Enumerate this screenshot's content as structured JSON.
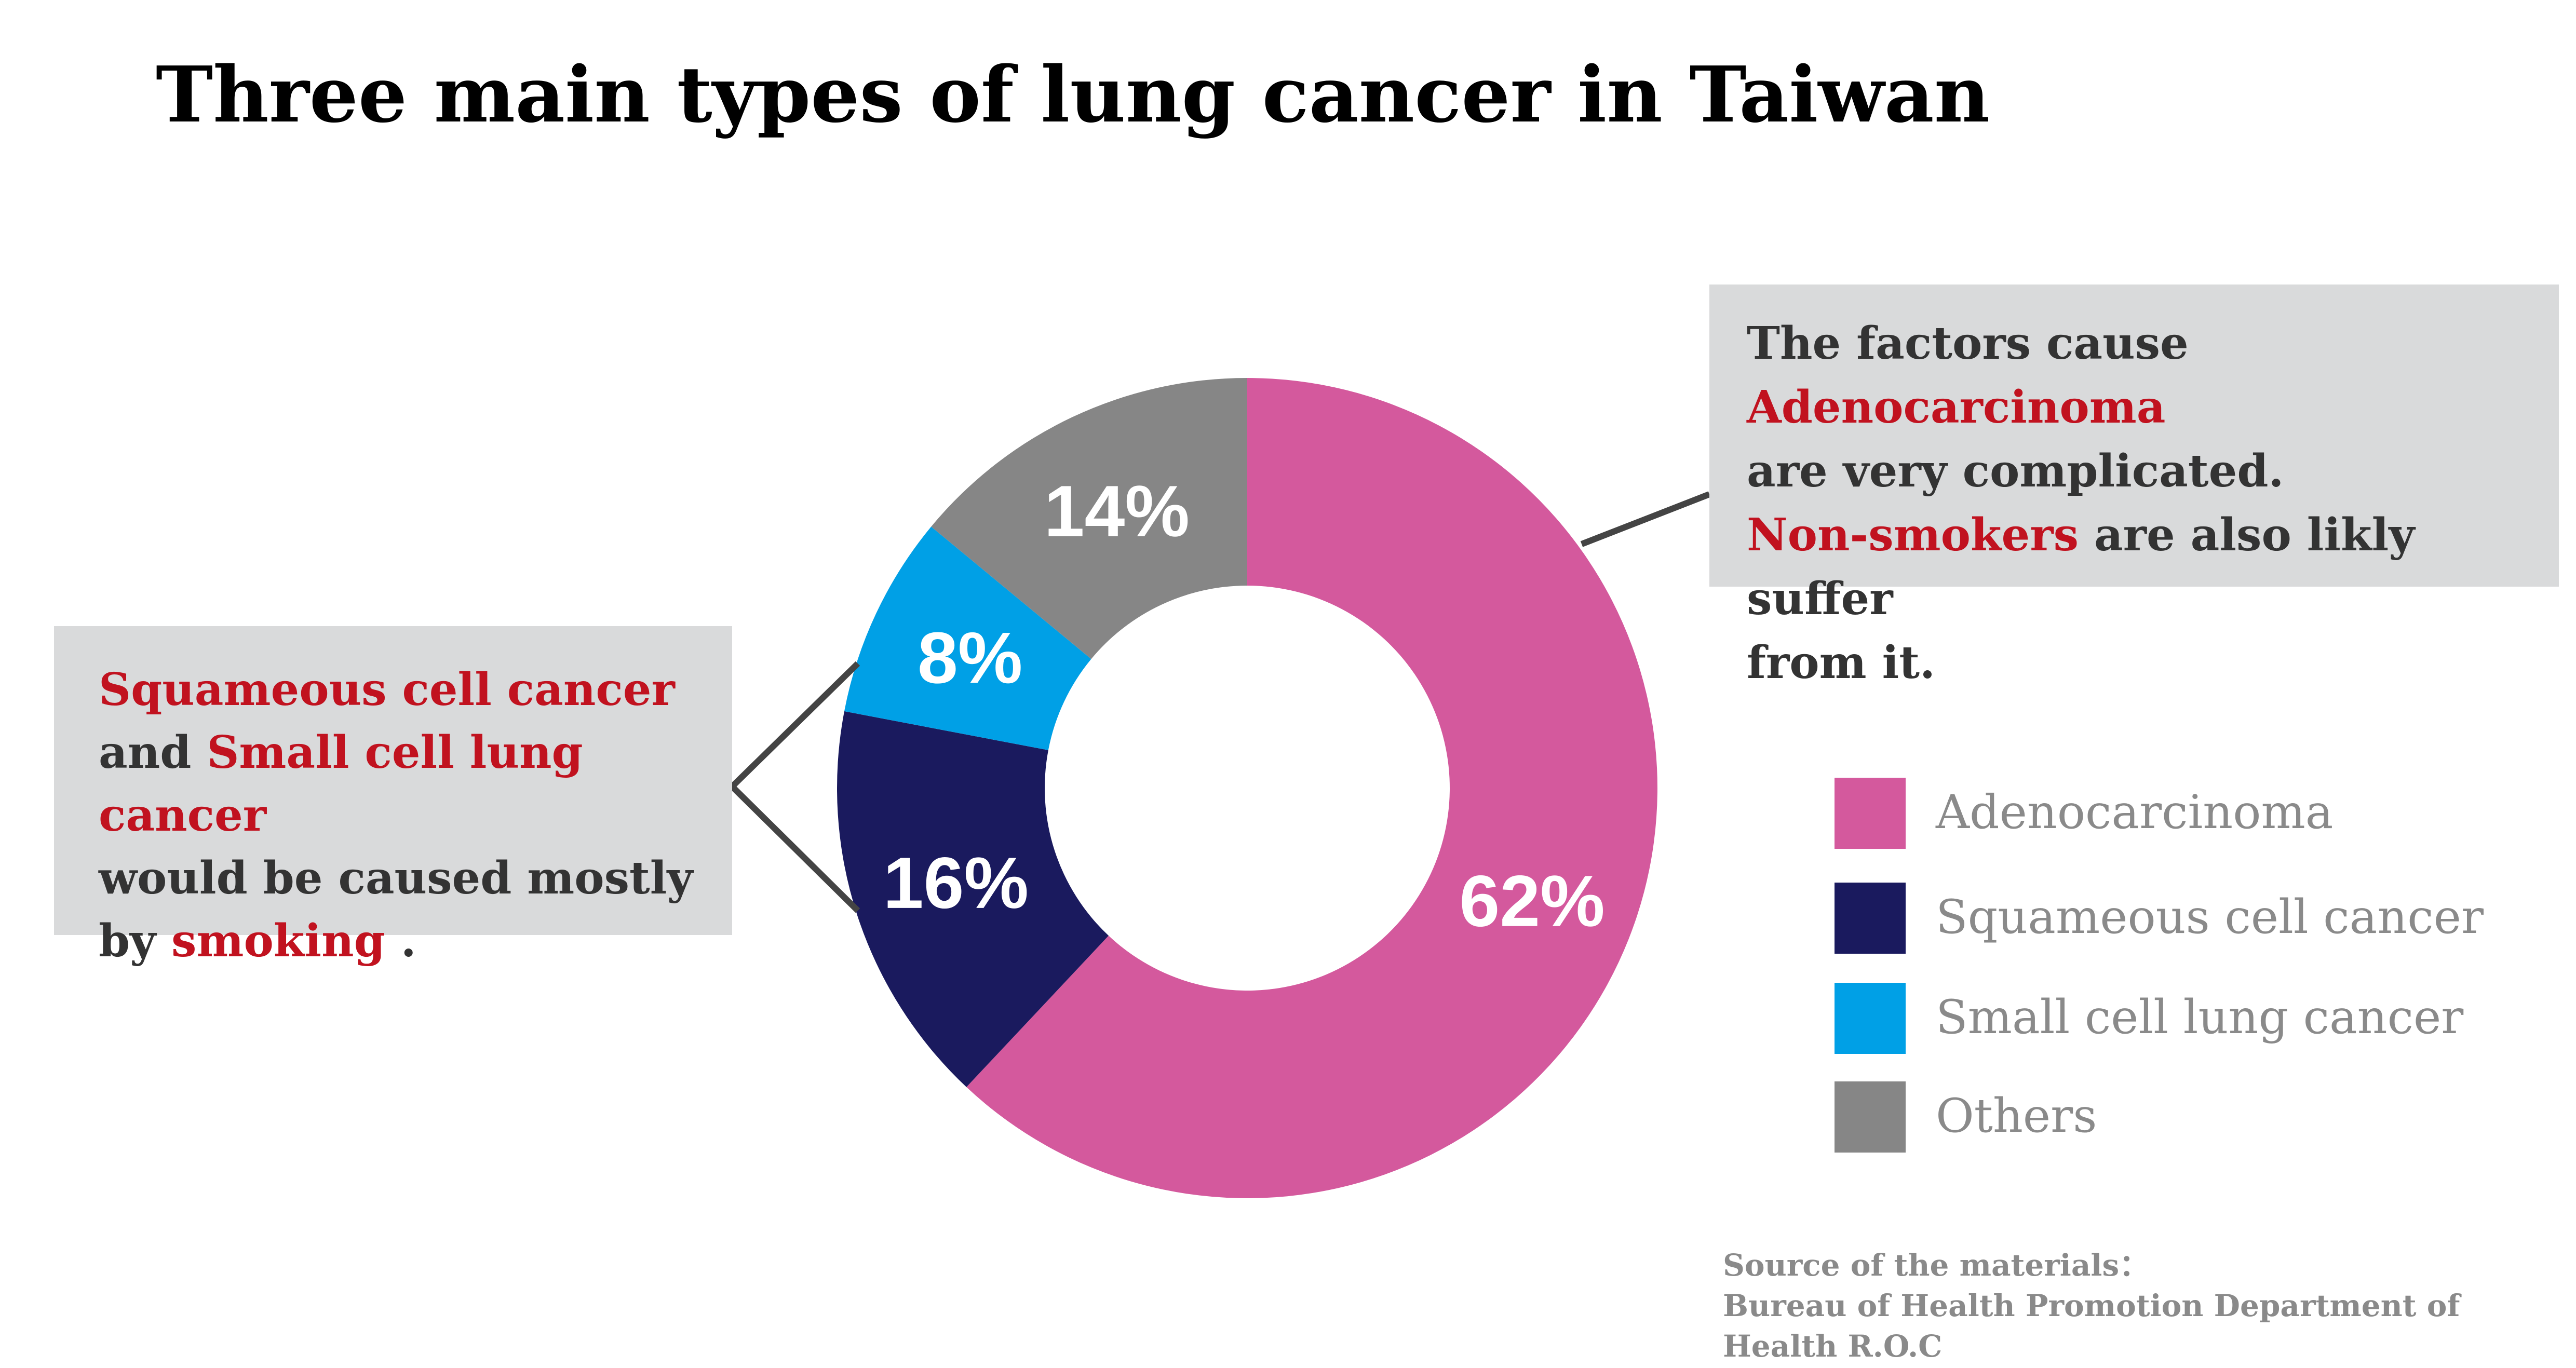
{
  "title": "Three main types of lung cancer in Taiwan",
  "chart_data": {
    "type": "pie",
    "style": "donut",
    "categories": [
      "Adenocarcinoma",
      "Squameous cell cancer",
      "Small cell lung cancer",
      "Others"
    ],
    "values": [
      62,
      16,
      8,
      14
    ],
    "data_labels": [
      "62%",
      "16%",
      "8%",
      "14%"
    ],
    "colors": [
      "#d4599d",
      "#1a1a5e",
      "#00a0e6",
      "#868686"
    ],
    "legend_position": "right"
  },
  "callouts": {
    "right": {
      "line1_a": "The factors cause ",
      "line1_b": "Adenocarcinoma",
      "line2": "are very complicated.",
      "line3_a": "Non-smokers",
      "line3_b": " are also likly suffer",
      "line4": "from it."
    },
    "left": {
      "line1": "Squameous cell cancer",
      "line2_a": "and ",
      "line2_b": "Small cell lung cancer",
      "line3": "would be caused mostly",
      "line4_a": "by ",
      "line4_b": "smoking",
      "line4_c": " ."
    }
  },
  "source": {
    "line1": "Source of the materials：",
    "line2": "Bureau of Health Promotion Department of Health R.O.C"
  },
  "colors": {
    "highlight": "#c1121f",
    "callout_bg": "#d9dadb",
    "connector": "#444444"
  }
}
